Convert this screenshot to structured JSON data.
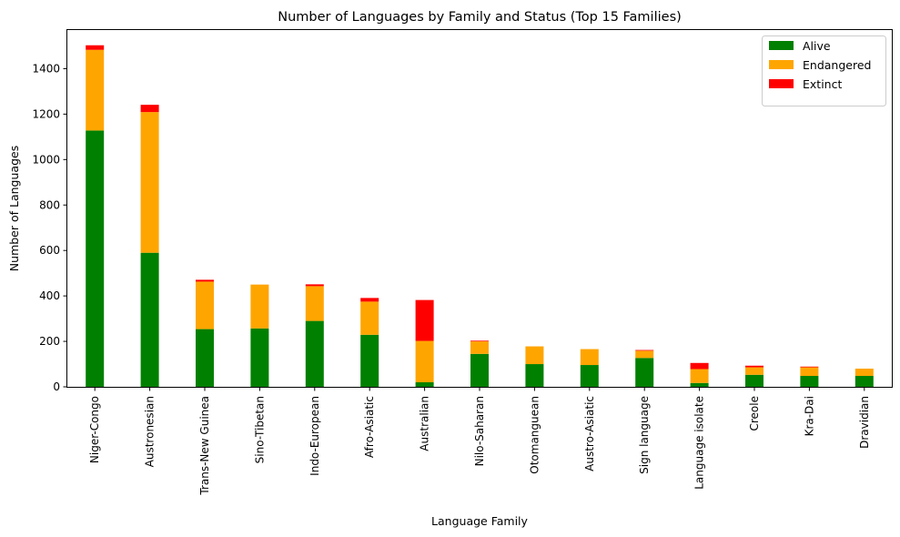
{
  "chart_data": {
    "type": "bar",
    "stacked": true,
    "title": "Number of Languages by Family and Status (Top 15 Families)",
    "xlabel": "Language Family",
    "ylabel": "Number of Languages",
    "ylim": [
      0,
      1570
    ],
    "yticks": [
      0,
      200,
      400,
      600,
      800,
      1000,
      1200,
      1400
    ],
    "grid": false,
    "legend_position": "top-right",
    "categories": [
      "Niger-Congo",
      "Austronesian",
      "Trans-New Guinea",
      "Sino-Tibetan",
      "Indo-European",
      "Afro-Asiatic",
      "Australian",
      "Nilo-Saharan",
      "Otomanguean",
      "Austro-Asiatic",
      "Sign language",
      "Language isolate",
      "Creole",
      "Kra-Dai",
      "Dravidian"
    ],
    "series": [
      {
        "name": "Alive",
        "color": "#008000",
        "values": [
          1128,
          590,
          254,
          257,
          290,
          229,
          20,
          145,
          100,
          96,
          127,
          17,
          53,
          48,
          48
        ]
      },
      {
        "name": "Endangered",
        "color": "#ffa500",
        "values": [
          355,
          619,
          209,
          193,
          153,
          146,
          182,
          55,
          78,
          70,
          32,
          61,
          33,
          38,
          32
        ]
      },
      {
        "name": "Extinct",
        "color": "#ff0000",
        "values": [
          20,
          32,
          8,
          0,
          8,
          16,
          180,
          3,
          0,
          0,
          3,
          27,
          7,
          3,
          0
        ]
      }
    ]
  }
}
